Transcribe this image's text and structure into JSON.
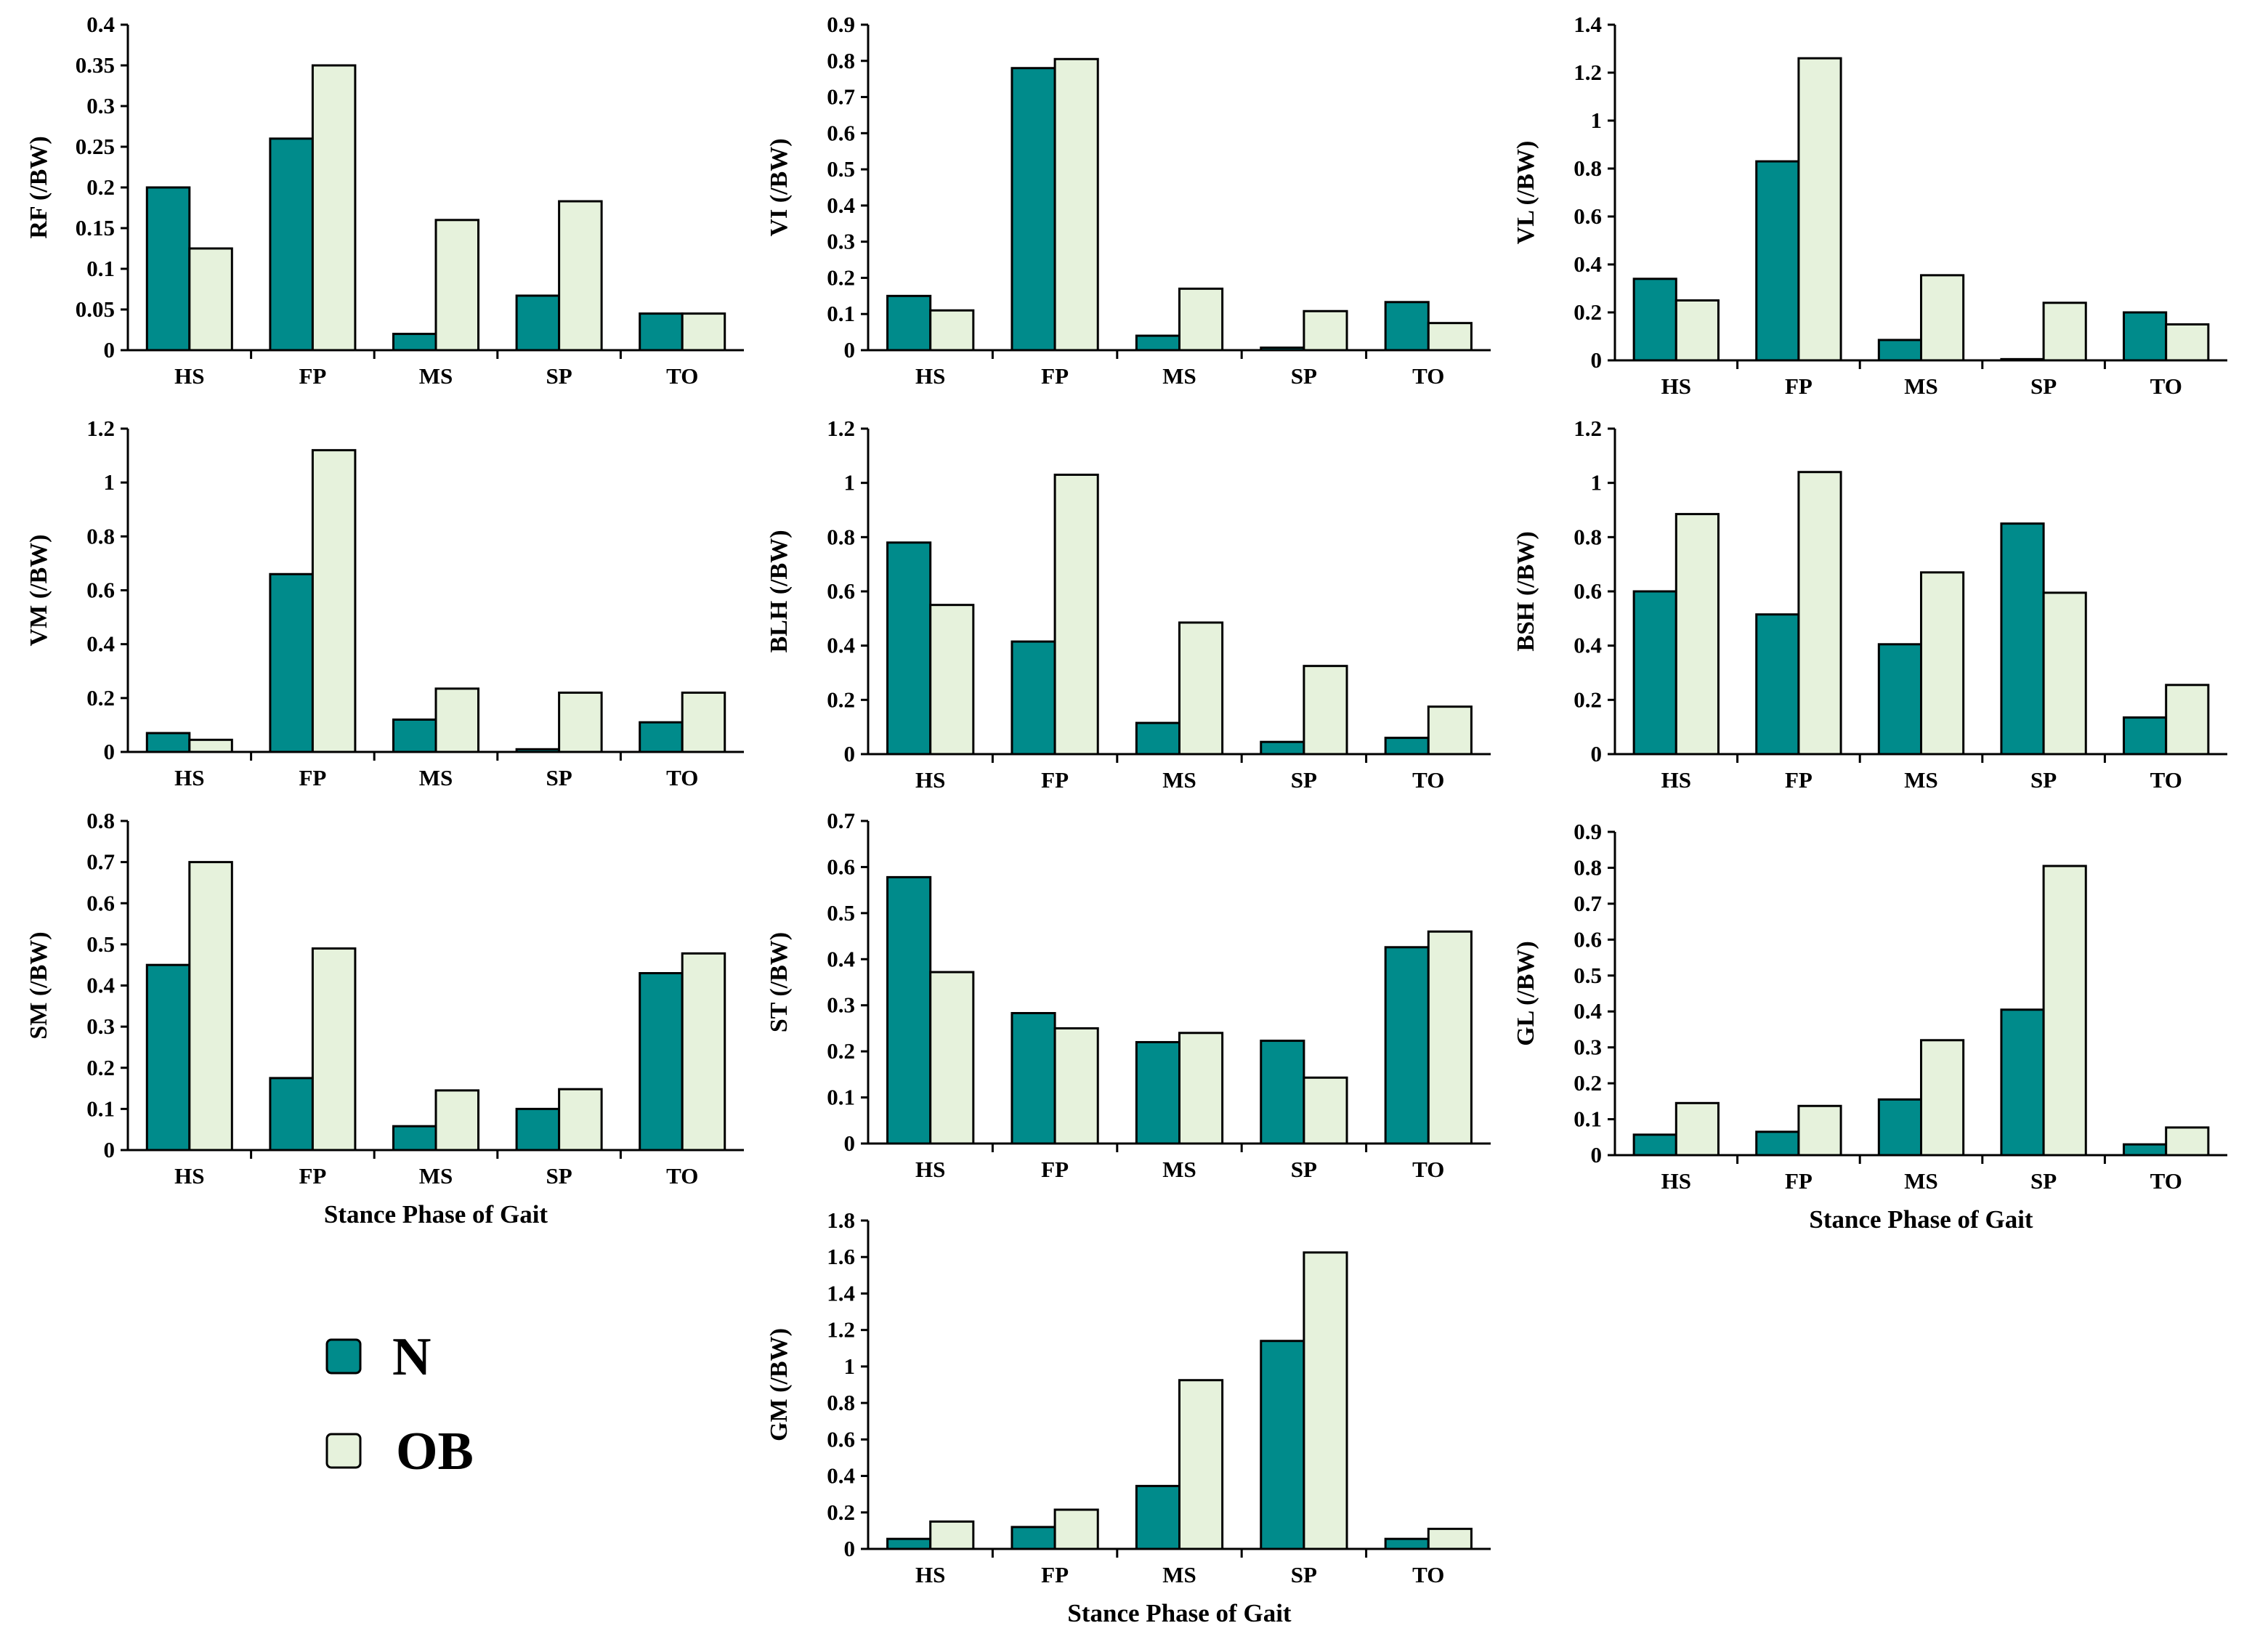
{
  "colors": {
    "N": "#008b8b",
    "OB": "#e6f2dc"
  },
  "legend": [
    {
      "key": "N",
      "label": "N"
    },
    {
      "key": "OB",
      "label": "OB"
    }
  ],
  "chart_data": [
    {
      "type": "bar",
      "title": "",
      "ylabel": "RF (/BW)",
      "xlabel": "",
      "categories": [
        "HS",
        "FP",
        "MS",
        "SP",
        "TO"
      ],
      "ylim": [
        0,
        0.4
      ],
      "yticks": [
        "0",
        "0.05",
        "0.1",
        "0.15",
        "0.2",
        "0.25",
        "0.3",
        "0.35",
        "0.4"
      ],
      "series": [
        {
          "name": "N",
          "values": [
            0.2,
            0.26,
            0.02,
            0.067,
            0.045
          ]
        },
        {
          "name": "OB",
          "values": [
            0.125,
            0.35,
            0.16,
            0.183,
            0.045
          ]
        }
      ]
    },
    {
      "type": "bar",
      "title": "",
      "ylabel": "VI (/BW)",
      "xlabel": "",
      "categories": [
        "HS",
        "FP",
        "MS",
        "SP",
        "TO"
      ],
      "ylim": [
        0,
        0.9
      ],
      "yticks": [
        "0",
        "0.1",
        "0.2",
        "0.3",
        "0.4",
        "0.5",
        "0.6",
        "0.7",
        "0.8",
        "0.9"
      ],
      "series": [
        {
          "name": "N",
          "values": [
            0.15,
            0.78,
            0.04,
            0.007,
            0.133
          ]
        },
        {
          "name": "OB",
          "values": [
            0.11,
            0.805,
            0.17,
            0.108,
            0.075
          ]
        }
      ]
    },
    {
      "type": "bar",
      "title": "",
      "ylabel": "VL (/BW)",
      "xlabel": "",
      "categories": [
        "HS",
        "FP",
        "MS",
        "SP",
        "TO"
      ],
      "ylim": [
        0,
        1.4
      ],
      "yticks": [
        "0",
        "0.2",
        "0.4",
        "0.6",
        "0.8",
        "1",
        "1.2",
        "1.4"
      ],
      "series": [
        {
          "name": "N",
          "values": [
            0.34,
            0.83,
            0.085,
            0.005,
            0.2
          ]
        },
        {
          "name": "OB",
          "values": [
            0.25,
            1.26,
            0.355,
            0.24,
            0.15
          ]
        }
      ]
    },
    {
      "type": "bar",
      "title": "",
      "ylabel": "VM (/BW)",
      "xlabel": "",
      "categories": [
        "HS",
        "FP",
        "MS",
        "SP",
        "TO"
      ],
      "ylim": [
        0,
        1.2
      ],
      "yticks": [
        "0",
        "0.2",
        "0.4",
        "0.6",
        "0.8",
        "1",
        "1.2"
      ],
      "series": [
        {
          "name": "N",
          "values": [
            0.07,
            0.66,
            0.12,
            0.01,
            0.11
          ]
        },
        {
          "name": "OB",
          "values": [
            0.045,
            1.12,
            0.235,
            0.22,
            0.22
          ]
        }
      ]
    },
    {
      "type": "bar",
      "title": "",
      "ylabel": "BLH (/BW)",
      "xlabel": "",
      "categories": [
        "HS",
        "FP",
        "MS",
        "SP",
        "TO"
      ],
      "ylim": [
        0,
        1.2
      ],
      "yticks": [
        "0",
        "0.2",
        "0.4",
        "0.6",
        "0.8",
        "1",
        "1.2"
      ],
      "series": [
        {
          "name": "N",
          "values": [
            0.78,
            0.415,
            0.115,
            0.045,
            0.06
          ]
        },
        {
          "name": "OB",
          "values": [
            0.55,
            1.03,
            0.485,
            0.325,
            0.175
          ]
        }
      ]
    },
    {
      "type": "bar",
      "title": "",
      "ylabel": "BSH (/BW)",
      "xlabel": "",
      "categories": [
        "HS",
        "FP",
        "MS",
        "SP",
        "TO"
      ],
      "ylim": [
        0,
        1.2
      ],
      "yticks": [
        "0",
        "0.2",
        "0.4",
        "0.6",
        "0.8",
        "1",
        "1.2"
      ],
      "series": [
        {
          "name": "N",
          "values": [
            0.6,
            0.515,
            0.405,
            0.85,
            0.135
          ]
        },
        {
          "name": "OB",
          "values": [
            0.885,
            1.04,
            0.67,
            0.595,
            0.255
          ]
        }
      ]
    },
    {
      "type": "bar",
      "title": "",
      "ylabel": "SM (/BW)",
      "xlabel": "Stance Phase of Gait",
      "categories": [
        "HS",
        "FP",
        "MS",
        "SP",
        "TO"
      ],
      "ylim": [
        0,
        0.8
      ],
      "yticks": [
        "0",
        "0.1",
        "0.2",
        "0.3",
        "0.4",
        "0.5",
        "0.6",
        "0.7",
        "0.8"
      ],
      "series": [
        {
          "name": "N",
          "values": [
            0.45,
            0.175,
            0.058,
            0.1,
            0.43
          ]
        },
        {
          "name": "OB",
          "values": [
            0.7,
            0.49,
            0.145,
            0.148,
            0.478
          ]
        }
      ]
    },
    {
      "type": "bar",
      "title": "",
      "ylabel": "ST (/BW)",
      "xlabel": "",
      "categories": [
        "HS",
        "FP",
        "MS",
        "SP",
        "TO"
      ],
      "ylim": [
        0,
        0.7
      ],
      "yticks": [
        "0",
        "0.1",
        "0.2",
        "0.3",
        "0.4",
        "0.5",
        "0.6",
        "0.7"
      ],
      "series": [
        {
          "name": "N",
          "values": [
            0.578,
            0.283,
            0.22,
            0.223,
            0.426
          ]
        },
        {
          "name": "OB",
          "values": [
            0.372,
            0.25,
            0.24,
            0.143,
            0.46
          ]
        }
      ]
    },
    {
      "type": "bar",
      "title": "",
      "ylabel": "GL (/BW)",
      "xlabel": "Stance Phase of Gait",
      "categories": [
        "HS",
        "FP",
        "MS",
        "SP",
        "TO"
      ],
      "ylim": [
        0,
        0.9
      ],
      "yticks": [
        "0",
        "0.1",
        "0.2",
        "0.3",
        "0.4",
        "0.5",
        "0.6",
        "0.7",
        "0.8",
        "0.9"
      ],
      "series": [
        {
          "name": "N",
          "values": [
            0.057,
            0.065,
            0.155,
            0.405,
            0.03
          ]
        },
        {
          "name": "OB",
          "values": [
            0.145,
            0.137,
            0.32,
            0.805,
            0.077
          ]
        }
      ]
    },
    {
      "type": "bar",
      "title": "",
      "ylabel": "GM (/BW)",
      "xlabel": "Stance Phase of Gait",
      "categories": [
        "HS",
        "FP",
        "MS",
        "SP",
        "TO"
      ],
      "ylim": [
        0,
        1.8
      ],
      "yticks": [
        "0",
        "0.2",
        "0.4",
        "0.6",
        "0.8",
        "1",
        "1.2",
        "1.4",
        "1.6",
        "1.8"
      ],
      "series": [
        {
          "name": "N",
          "values": [
            0.055,
            0.12,
            0.345,
            1.14,
            0.055
          ]
        },
        {
          "name": "OB",
          "values": [
            0.15,
            0.215,
            0.925,
            1.625,
            0.11
          ]
        }
      ]
    }
  ]
}
